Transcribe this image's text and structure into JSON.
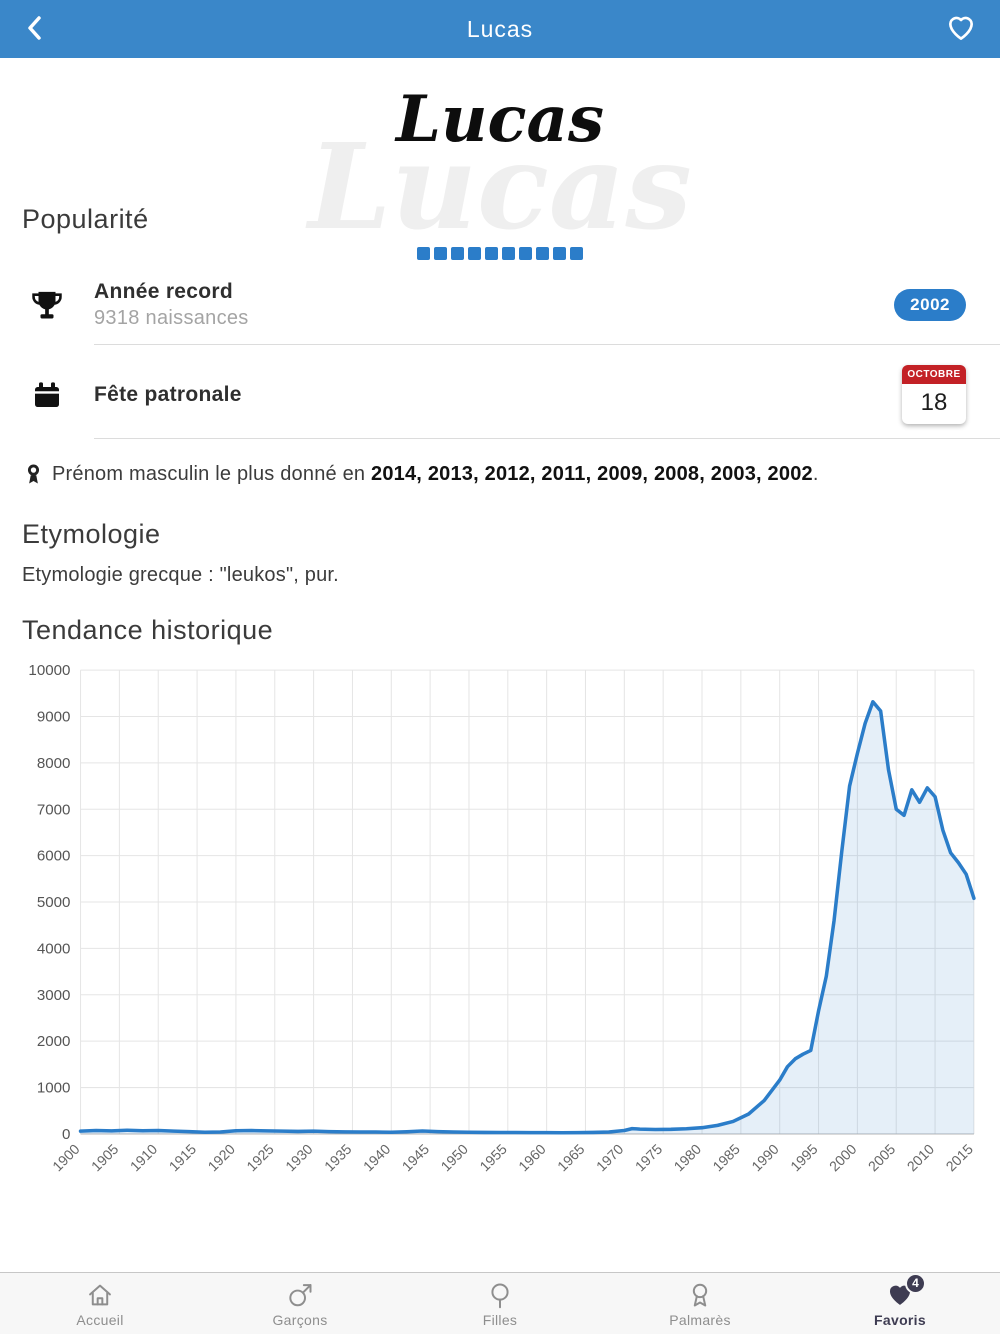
{
  "header": {
    "title": "Lucas"
  },
  "logo": {
    "text": "Lucas"
  },
  "popularity": {
    "heading": "Popularité",
    "dots_total": 10,
    "dots_filled": 10
  },
  "record": {
    "title": "Année record",
    "subtitle": "9318 naissances",
    "badge": "2002"
  },
  "patron": {
    "title": "Fête patronale",
    "month": "OCTOBRE",
    "day": "18"
  },
  "top_name": {
    "prefix": "Prénom masculin le plus donné en ",
    "years": "2014, 2013, 2012, 2011, 2009, 2008, 2003, 2002",
    "suffix": "."
  },
  "etymology": {
    "heading": "Etymologie",
    "text": "Etymologie grecque : \"leukos\", pur."
  },
  "trend": {
    "heading": "Tendance historique"
  },
  "chart_data": {
    "type": "area",
    "title": "Tendance historique",
    "xlabel": "",
    "ylabel": "",
    "xlim": [
      1900,
      2015
    ],
    "ylim": [
      0,
      10000
    ],
    "x_tick_step": 5,
    "y_tick_step": 1000,
    "grid": true,
    "legend": false,
    "line_color": "#2b7dc9",
    "area_fill": "rgba(43,125,201,0.12)",
    "points": [
      [
        1900,
        60
      ],
      [
        1902,
        75
      ],
      [
        1904,
        65
      ],
      [
        1906,
        80
      ],
      [
        1908,
        70
      ],
      [
        1910,
        75
      ],
      [
        1912,
        60
      ],
      [
        1914,
        50
      ],
      [
        1916,
        38
      ],
      [
        1918,
        42
      ],
      [
        1920,
        70
      ],
      [
        1922,
        75
      ],
      [
        1924,
        65
      ],
      [
        1926,
        60
      ],
      [
        1928,
        55
      ],
      [
        1930,
        60
      ],
      [
        1932,
        50
      ],
      [
        1934,
        45
      ],
      [
        1936,
        42
      ],
      [
        1938,
        42
      ],
      [
        1940,
        36
      ],
      [
        1942,
        48
      ],
      [
        1944,
        62
      ],
      [
        1946,
        50
      ],
      [
        1948,
        42
      ],
      [
        1950,
        38
      ],
      [
        1952,
        33
      ],
      [
        1954,
        30
      ],
      [
        1956,
        30
      ],
      [
        1958,
        28
      ],
      [
        1960,
        28
      ],
      [
        1962,
        27
      ],
      [
        1964,
        28
      ],
      [
        1966,
        32
      ],
      [
        1968,
        42
      ],
      [
        1970,
        75
      ],
      [
        1971,
        115
      ],
      [
        1972,
        105
      ],
      [
        1974,
        95
      ],
      [
        1976,
        100
      ],
      [
        1978,
        112
      ],
      [
        1980,
        135
      ],
      [
        1982,
        185
      ],
      [
        1984,
        270
      ],
      [
        1986,
        430
      ],
      [
        1988,
        720
      ],
      [
        1990,
        1160
      ],
      [
        1991,
        1450
      ],
      [
        1992,
        1620
      ],
      [
        1993,
        1720
      ],
      [
        1994,
        1800
      ],
      [
        1995,
        2650
      ],
      [
        1996,
        3400
      ],
      [
        1997,
        4600
      ],
      [
        1998,
        6100
      ],
      [
        1999,
        7500
      ],
      [
        2000,
        8200
      ],
      [
        2001,
        8850
      ],
      [
        2002,
        9318
      ],
      [
        2003,
        9120
      ],
      [
        2004,
        7850
      ],
      [
        2005,
        7000
      ],
      [
        2006,
        6870
      ],
      [
        2007,
        7420
      ],
      [
        2008,
        7150
      ],
      [
        2009,
        7460
      ],
      [
        2010,
        7270
      ],
      [
        2011,
        6550
      ],
      [
        2012,
        6060
      ],
      [
        2013,
        5850
      ],
      [
        2014,
        5600
      ],
      [
        2015,
        5080
      ]
    ]
  },
  "tabbar": {
    "items": [
      {
        "label": "Accueil"
      },
      {
        "label": "Garçons"
      },
      {
        "label": "Filles"
      },
      {
        "label": "Palmarès"
      },
      {
        "label": "Favoris",
        "badge": "4",
        "active": true
      }
    ]
  },
  "colors": {
    "header_blue": "#3a87c9",
    "accent_blue": "#2b7dc9",
    "calendar_red": "#c32126",
    "tab_active": "#3e3c52"
  }
}
